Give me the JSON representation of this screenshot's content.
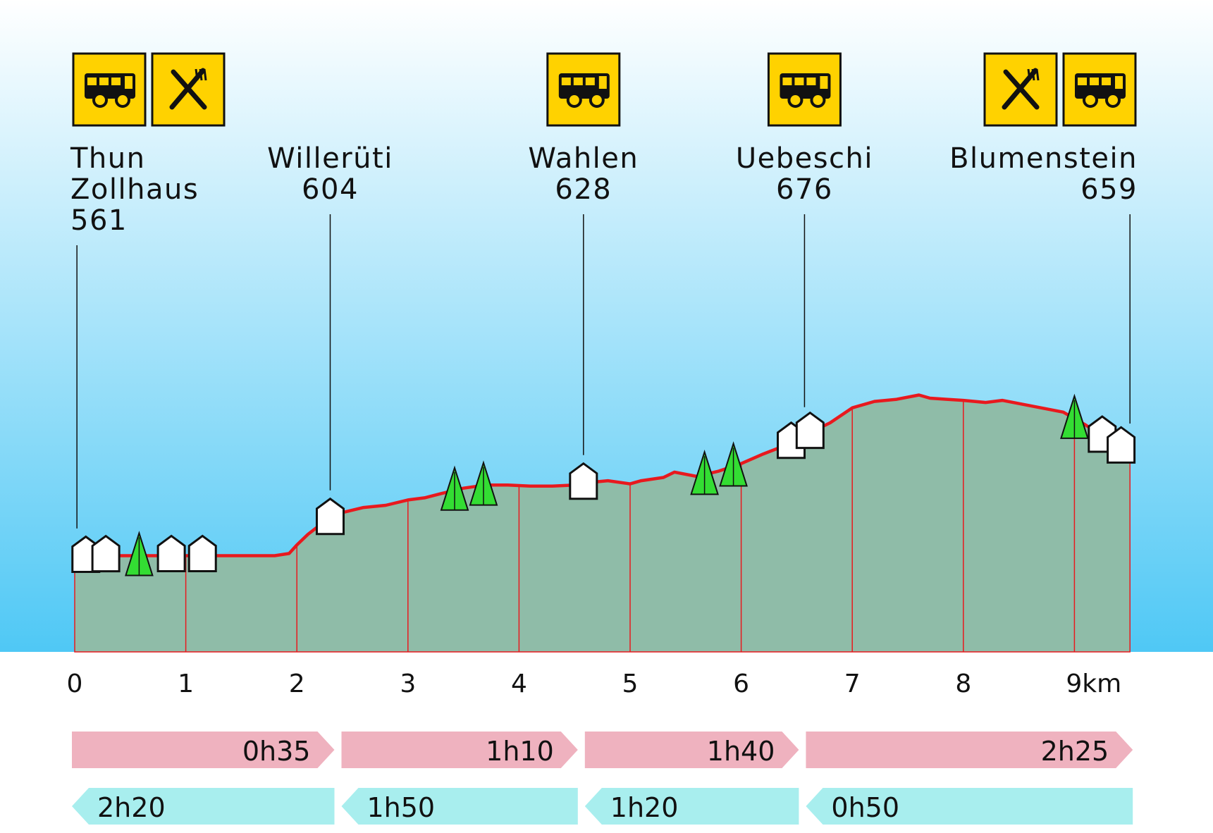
{
  "chart_data": {
    "type": "area",
    "title": "",
    "xlabel": "",
    "ylabel": "",
    "x_unit": "km",
    "x_ticks": [
      "0",
      "1",
      "2",
      "3",
      "4",
      "5",
      "6",
      "7",
      "8",
      "9km"
    ],
    "xlim": [
      0,
      9.52
    ],
    "ylim": [
      480,
      770
    ],
    "colors": {
      "sky_top": "#ffffff",
      "sky_bottom": "#4fc8f5",
      "area_fill": "#8fbca8",
      "profile_line": "#e8191e",
      "km_grid": "#e8191e",
      "forward_arrow": "#efb2bf",
      "return_arrow": "#a8eeee",
      "icon_bg": "#ffd200",
      "tree": "#33dd33"
    },
    "series": [
      {
        "x": [
          0,
          0.3,
          0.6,
          0.9,
          1.2,
          1.5,
          1.8,
          1.93,
          2.0,
          2.1,
          2.25,
          2.4,
          2.6,
          2.8,
          3.0,
          3.15,
          3.3,
          3.5,
          3.7,
          3.9,
          4.1,
          4.3,
          4.5,
          4.6,
          4.8,
          5.0,
          5.1,
          5.3,
          5.4,
          5.6,
          5.8,
          6.0,
          6.2,
          6.4,
          6.6,
          6.8,
          7.0,
          7.2,
          7.4,
          7.6,
          7.7,
          7.85,
          8.0,
          8.2,
          8.35,
          8.6,
          8.9,
          9.1,
          9.3,
          9.5
        ],
        "y": [
          561,
          562,
          562,
          562,
          562,
          562,
          562,
          564,
          572,
          582,
          594,
          602,
          607,
          609,
          614,
          616,
          620,
          625,
          628,
          628,
          627,
          627,
          628,
          630,
          632,
          629,
          632,
          635,
          640,
          636,
          641,
          648,
          657,
          665,
          676,
          686,
          700,
          706,
          708,
          712,
          709,
          708,
          707,
          705,
          707,
          702,
          696,
          684,
          670,
          659
        ]
      }
    ],
    "stations": [
      {
        "name_lines": [
          "Thun",
          "Zollhaus"
        ],
        "elevation": "561",
        "km": 0.02,
        "icons": [
          "bus-icon",
          "restaurant-icon"
        ]
      },
      {
        "name_lines": [
          "Willerüti"
        ],
        "elevation": "604",
        "km": 2.3,
        "icons": []
      },
      {
        "name_lines": [
          "Wahlen"
        ],
        "elevation": "628",
        "km": 4.58,
        "icons": [
          "bus-icon"
        ]
      },
      {
        "name_lines": [
          "Uebeschi"
        ],
        "elevation": "676",
        "km": 6.57,
        "icons": [
          "bus-icon"
        ]
      },
      {
        "name_lines": [
          "Blumenstein"
        ],
        "elevation": "659",
        "km": 9.5,
        "icons": [
          "restaurant-icon",
          "bus-icon"
        ]
      }
    ],
    "annotations": {
      "houses_km": [
        0.1,
        0.28,
        0.87,
        1.15,
        2.3,
        4.58,
        6.45,
        6.62,
        9.25,
        9.42
      ],
      "trees_km": [
        0.58,
        3.42,
        3.68,
        5.67,
        5.93,
        9.0
      ]
    },
    "durations_forward": [
      "0h35",
      "1h10",
      "1h40",
      "2h25"
    ],
    "durations_return": [
      "2h20",
      "1h50",
      "1h20",
      "0h50"
    ]
  }
}
